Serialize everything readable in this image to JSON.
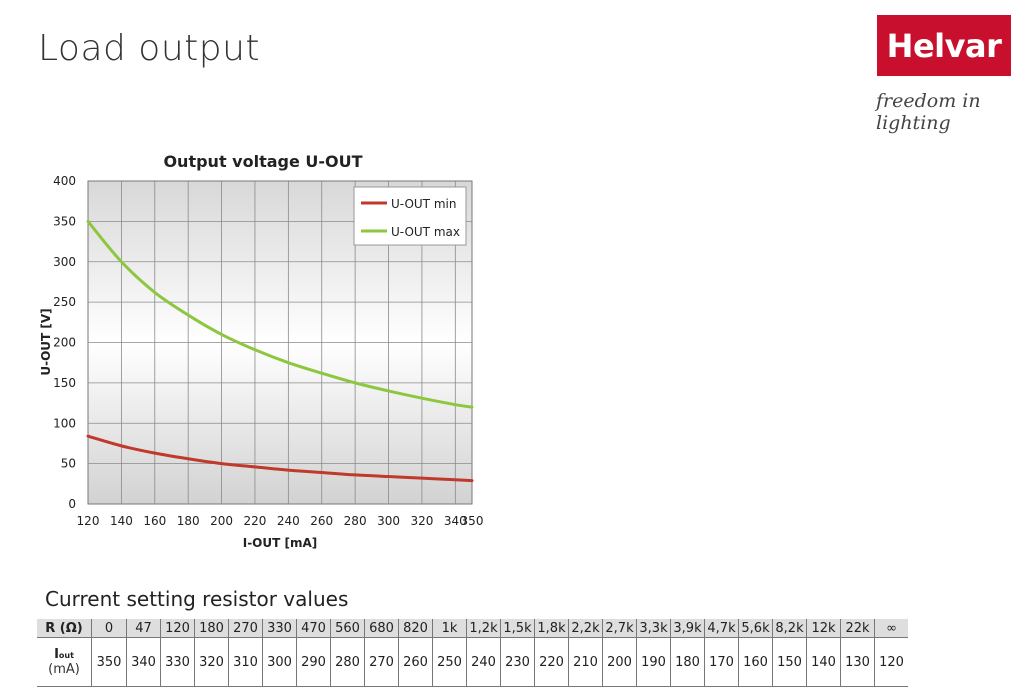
{
  "header": {
    "title": "Load output",
    "logo_text": "Helvar",
    "tagline": "freedom in lighting",
    "brand_color": "#c8102e"
  },
  "chart_data": {
    "type": "line",
    "title": "Output voltage U-OUT",
    "xlabel": "I-OUT [mA]",
    "ylabel": "U-OUT [V]",
    "xlim": [
      120,
      350
    ],
    "ylim": [
      0,
      400
    ],
    "x_ticks": [
      120,
      140,
      160,
      180,
      200,
      220,
      240,
      260,
      280,
      300,
      320,
      340,
      350
    ],
    "y_ticks": [
      0,
      50,
      100,
      150,
      200,
      250,
      300,
      350,
      400
    ],
    "grid": true,
    "legend_position": "top-right",
    "x": [
      120,
      140,
      160,
      180,
      200,
      220,
      240,
      260,
      280,
      300,
      320,
      340,
      350
    ],
    "series": [
      {
        "name": "U-OUT min",
        "color": "#c0392b",
        "values": [
          84,
          72,
          63,
          56,
          50,
          46,
          42,
          39,
          36,
          34,
          32,
          30,
          29
        ]
      },
      {
        "name": "U-OUT max",
        "color": "#8dc63f",
        "values": [
          350,
          300,
          262,
          234,
          210,
          191,
          175,
          162,
          150,
          140,
          131,
          123,
          120
        ]
      }
    ]
  },
  "resistor_table": {
    "title": "Current setting resistor values",
    "row1_label": "R (Ω)",
    "row2_label_main": "I",
    "row2_label_sub": "out",
    "row2_label_unit": "(mA)",
    "r_values": [
      "0",
      "47",
      "120",
      "180",
      "270",
      "330",
      "470",
      "560",
      "680",
      "820",
      "1k",
      "1,2k",
      "1,5k",
      "1,8k",
      "2,2k",
      "2,7k",
      "3,3k",
      "3,9k",
      "4,7k",
      "5,6k",
      "8,2k",
      "12k",
      "22k",
      "∞"
    ],
    "i_values": [
      "350",
      "340",
      "330",
      "320",
      "310",
      "300",
      "290",
      "280",
      "270",
      "260",
      "250",
      "240",
      "230",
      "220",
      "210",
      "200",
      "190",
      "180",
      "170",
      "160",
      "150",
      "140",
      "130",
      "120"
    ]
  }
}
